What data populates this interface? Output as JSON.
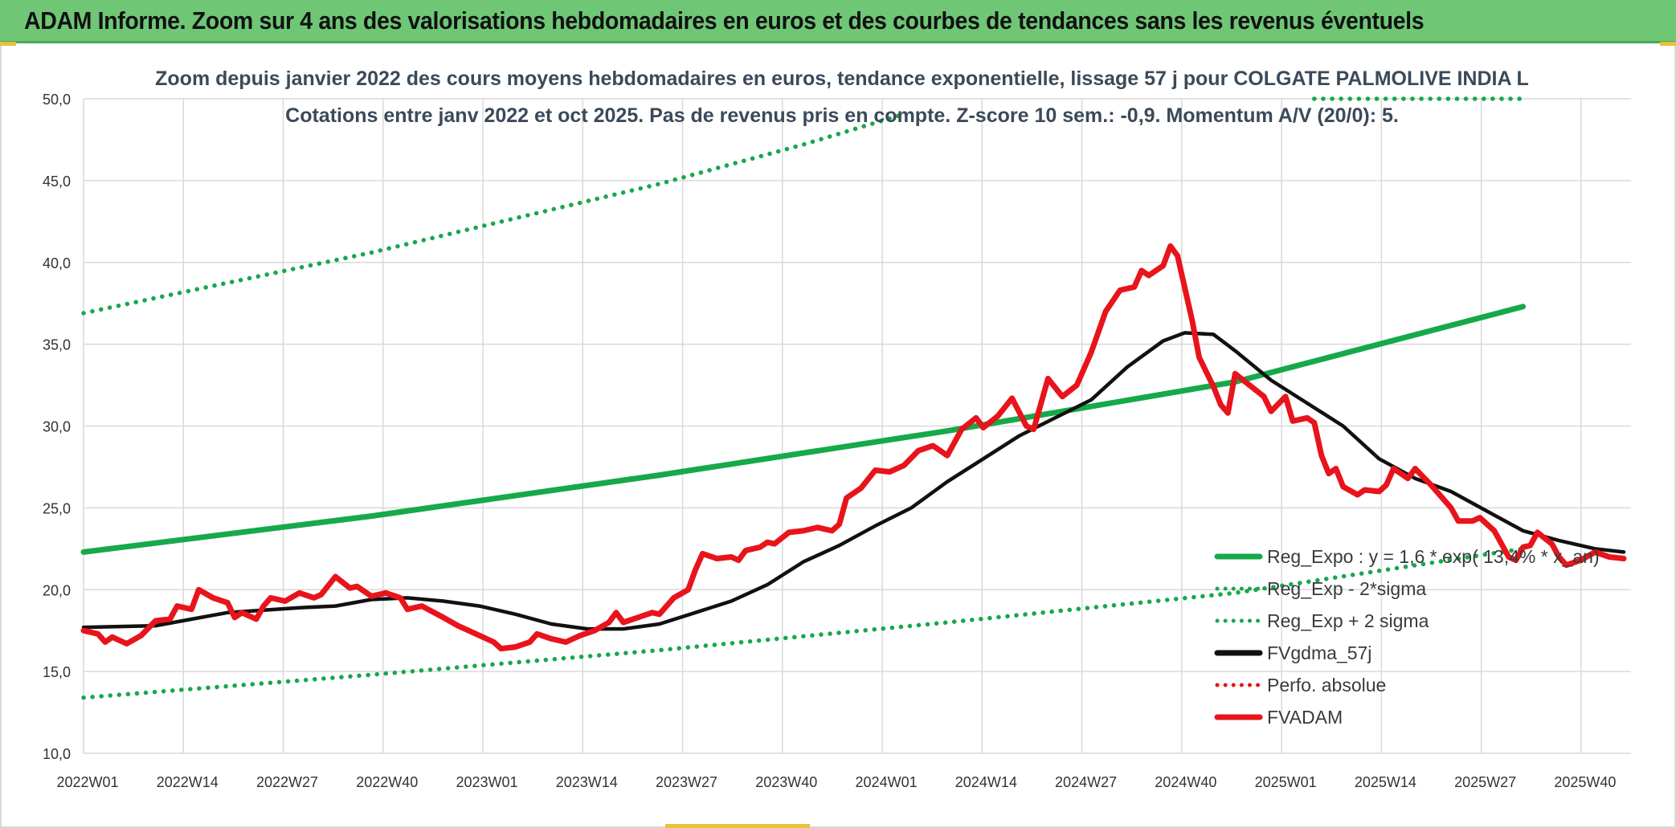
{
  "banner": {
    "title": "ADAM Informe. Zoom sur 4 ans des valorisations hebdomadaires en euros et des courbes de tendances sans les revenus éventuels"
  },
  "colors": {
    "banner_bg": "#6fc776",
    "green": "#16a94a",
    "black": "#111111",
    "red": "#e8141b",
    "grid": "#d9d9d9"
  },
  "chart_data": {
    "type": "line",
    "title_line1": "Zoom depuis janvier 2022 des cours moyens hebdomadaires en euros, tendance exponentielle, lissage 57 j pour COLGATE PALMOLIVE INDIA L",
    "title_line2": "Cotations entre janv 2022 et oct 2025. Pas de revenus pris en compte. Z-score 10 sem.: -0,9. Momentum A/V (20/0): 5.",
    "ylim": [
      10,
      50
    ],
    "y_ticks": [
      "10,0",
      "15,0",
      "20,0",
      "25,0",
      "30,0",
      "35,0",
      "40,0",
      "45,0",
      "50,0"
    ],
    "x_ticks": [
      "2022W01",
      "2022W14",
      "2022W27",
      "2022W40",
      "2023W01",
      "2023W14",
      "2023W27",
      "2023W40",
      "2024W01",
      "2024W14",
      "2024W27",
      "2024W40",
      "2025W01",
      "2025W14",
      "2025W27",
      "2025W40"
    ],
    "x_range_weeks": [
      0,
      200
    ],
    "legend": [
      {
        "name": "Reg_Expo : y = 1,6 * exp( 13,4% * x_an)",
        "style": "solid",
        "color": "#16a94a"
      },
      {
        "name": "Reg_Exp - 2*sigma",
        "style": "dotted",
        "color": "#16a94a"
      },
      {
        "name": "Reg_Exp + 2 sigma",
        "style": "dotted",
        "color": "#16a94a"
      },
      {
        "name": "FVgdma_57j",
        "style": "solid",
        "color": "#111111"
      },
      {
        "name": "Perfo. absolue",
        "style": "dotted",
        "color": "#e8141b"
      },
      {
        "name": "FVADAM",
        "style": "solid",
        "color": "#e8141b"
      }
    ],
    "series": [
      {
        "name": "Reg_Expo",
        "points": [
          [
            0,
            22.3
          ],
          [
            40,
            24.5
          ],
          [
            80,
            27.0
          ],
          [
            120,
            29.7
          ],
          [
            160,
            32.7
          ],
          [
            200,
            37.3
          ]
        ]
      },
      {
        "name": "Reg_Exp - 2*sigma",
        "points": [
          [
            0,
            13.4
          ],
          [
            40,
            14.8
          ],
          [
            80,
            16.3
          ],
          [
            120,
            18.0
          ],
          [
            160,
            19.8
          ],
          [
            200,
            22.5
          ]
        ]
      },
      {
        "name": "Reg_Exp + 2 sigma",
        "points": [
          [
            0,
            36.9
          ],
          [
            40,
            40.6
          ],
          [
            80,
            44.8
          ],
          [
            100,
            47.2
          ],
          [
            112,
            48.8
          ],
          [
            113.5,
            49.0
          ]
        ]
      },
      {
        "name": "Reg_Exp + 2 sigma (suite)",
        "points": [
          [
            171,
            50.0
          ],
          [
            200,
            50.0
          ]
        ]
      },
      {
        "name": "FVgdma_57j",
        "points": [
          [
            0,
            17.7
          ],
          [
            10,
            17.8
          ],
          [
            20,
            18.6
          ],
          [
            30,
            18.9
          ],
          [
            35,
            19.0
          ],
          [
            40,
            19.4
          ],
          [
            45,
            19.5
          ],
          [
            50,
            19.3
          ],
          [
            55,
            19.0
          ],
          [
            60,
            18.5
          ],
          [
            65,
            17.9
          ],
          [
            70,
            17.6
          ],
          [
            75,
            17.6
          ],
          [
            80,
            17.9
          ],
          [
            85,
            18.6
          ],
          [
            90,
            19.3
          ],
          [
            95,
            20.3
          ],
          [
            100,
            21.7
          ],
          [
            105,
            22.7
          ],
          [
            110,
            23.9
          ],
          [
            115,
            25.0
          ],
          [
            120,
            26.6
          ],
          [
            125,
            28.0
          ],
          [
            130,
            29.4
          ],
          [
            135,
            30.5
          ],
          [
            140,
            31.6
          ],
          [
            145,
            33.6
          ],
          [
            150,
            35.2
          ],
          [
            153,
            35.7
          ],
          [
            157,
            35.6
          ],
          [
            160,
            34.6
          ],
          [
            165,
            32.8
          ],
          [
            170,
            31.4
          ],
          [
            175,
            30.0
          ],
          [
            180,
            28.0
          ],
          [
            185,
            26.8
          ],
          [
            190,
            26.0
          ],
          [
            195,
            24.8
          ],
          [
            200,
            23.6
          ],
          [
            205,
            23.0
          ],
          [
            210,
            22.5
          ],
          [
            214,
            22.3
          ]
        ]
      },
      {
        "name": "FVADAM",
        "points": [
          [
            0,
            17.5
          ],
          [
            2,
            17.3
          ],
          [
            3,
            16.8
          ],
          [
            4,
            17.1
          ],
          [
            6,
            16.7
          ],
          [
            8,
            17.2
          ],
          [
            10,
            18.1
          ],
          [
            12,
            18.2
          ],
          [
            13,
            19.0
          ],
          [
            15,
            18.8
          ],
          [
            16,
            20.0
          ],
          [
            18,
            19.5
          ],
          [
            20,
            19.2
          ],
          [
            21,
            18.3
          ],
          [
            22,
            18.6
          ],
          [
            24,
            18.2
          ],
          [
            25,
            19.0
          ],
          [
            26,
            19.5
          ],
          [
            28,
            19.3
          ],
          [
            30,
            19.8
          ],
          [
            32,
            19.5
          ],
          [
            33,
            19.7
          ],
          [
            35,
            20.8
          ],
          [
            37,
            20.1
          ],
          [
            38,
            20.2
          ],
          [
            40,
            19.6
          ],
          [
            42,
            19.8
          ],
          [
            44,
            19.5
          ],
          [
            45,
            18.8
          ],
          [
            47,
            19.0
          ],
          [
            50,
            18.3
          ],
          [
            52,
            17.8
          ],
          [
            55,
            17.2
          ],
          [
            57,
            16.8
          ],
          [
            58,
            16.4
          ],
          [
            60,
            16.5
          ],
          [
            62,
            16.8
          ],
          [
            63,
            17.3
          ],
          [
            65,
            17.0
          ],
          [
            67,
            16.8
          ],
          [
            69,
            17.2
          ],
          [
            71,
            17.5
          ],
          [
            73,
            18.0
          ],
          [
            74,
            18.6
          ],
          [
            75,
            18.0
          ],
          [
            77,
            18.3
          ],
          [
            79,
            18.6
          ],
          [
            80,
            18.5
          ],
          [
            82,
            19.5
          ],
          [
            84,
            20.0
          ],
          [
            85,
            21.2
          ],
          [
            86,
            22.2
          ],
          [
            88,
            21.9
          ],
          [
            90,
            22.0
          ],
          [
            91,
            21.8
          ],
          [
            92,
            22.4
          ],
          [
            94,
            22.6
          ],
          [
            95,
            22.9
          ],
          [
            96,
            22.8
          ],
          [
            98,
            23.5
          ],
          [
            100,
            23.6
          ],
          [
            102,
            23.8
          ],
          [
            104,
            23.6
          ],
          [
            105,
            24.0
          ],
          [
            106,
            25.6
          ],
          [
            108,
            26.2
          ],
          [
            110,
            27.3
          ],
          [
            112,
            27.2
          ],
          [
            114,
            27.6
          ],
          [
            116,
            28.5
          ],
          [
            118,
            28.8
          ],
          [
            120,
            28.2
          ],
          [
            122,
            29.8
          ],
          [
            124,
            30.5
          ],
          [
            125,
            29.9
          ],
          [
            127,
            30.6
          ],
          [
            129,
            31.7
          ],
          [
            131,
            30.0
          ],
          [
            132,
            29.8
          ],
          [
            134,
            32.9
          ],
          [
            136,
            31.8
          ],
          [
            138,
            32.5
          ],
          [
            140,
            34.5
          ],
          [
            142,
            37.0
          ],
          [
            144,
            38.3
          ],
          [
            146,
            38.5
          ],
          [
            147,
            39.5
          ],
          [
            148,
            39.2
          ],
          [
            150,
            39.8
          ],
          [
            151,
            41.0
          ],
          [
            152,
            40.4
          ],
          [
            154,
            36.5
          ],
          [
            155,
            34.2
          ],
          [
            157,
            32.4
          ],
          [
            158,
            31.3
          ],
          [
            159,
            30.8
          ],
          [
            160,
            33.2
          ],
          [
            162,
            32.5
          ],
          [
            164,
            31.8
          ],
          [
            165,
            30.9
          ],
          [
            167,
            31.8
          ],
          [
            168,
            30.3
          ],
          [
            170,
            30.5
          ],
          [
            171,
            30.2
          ],
          [
            172,
            28.2
          ],
          [
            173,
            27.1
          ],
          [
            174,
            27.4
          ],
          [
            175,
            26.3
          ],
          [
            177,
            25.8
          ],
          [
            178,
            26.1
          ],
          [
            180,
            26.0
          ],
          [
            181,
            26.4
          ],
          [
            182,
            27.4
          ],
          [
            184,
            26.8
          ],
          [
            185,
            27.4
          ],
          [
            187,
            26.5
          ],
          [
            189,
            25.5
          ],
          [
            190,
            25.0
          ],
          [
            191,
            24.2
          ],
          [
            193,
            24.2
          ],
          [
            194,
            24.4
          ],
          [
            196,
            23.6
          ],
          [
            197,
            22.8
          ],
          [
            198,
            22.0
          ],
          [
            199,
            21.8
          ],
          [
            200,
            22.6
          ],
          [
            201,
            22.7
          ],
          [
            202,
            23.5
          ],
          [
            204,
            22.8
          ],
          [
            205,
            22.0
          ],
          [
            206,
            21.5
          ],
          [
            208,
            21.8
          ],
          [
            210,
            22.3
          ],
          [
            212,
            22.0
          ],
          [
            214,
            21.9
          ]
        ]
      }
    ]
  }
}
